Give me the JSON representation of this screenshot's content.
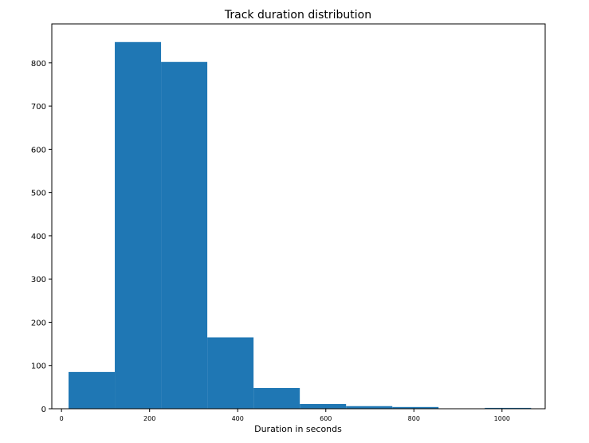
{
  "chart_data": {
    "type": "bar",
    "title": "Track duration distribution",
    "xlabel": "Duration in seconds",
    "ylabel": "",
    "bar_color": "#1f77b4",
    "xlim": [
      -22,
      1098
    ],
    "ylim": [
      0,
      890
    ],
    "xticks": [
      0,
      200,
      400,
      600,
      800,
      1000
    ],
    "yticks": [
      0,
      100,
      200,
      300,
      400,
      500,
      600,
      700,
      800
    ],
    "bins": [
      {
        "x0": 16,
        "x1": 121,
        "value": 85
      },
      {
        "x0": 121,
        "x1": 226,
        "value": 848
      },
      {
        "x0": 226,
        "x1": 331,
        "value": 802
      },
      {
        "x0": 331,
        "x1": 436,
        "value": 165
      },
      {
        "x0": 436,
        "x1": 541,
        "value": 48
      },
      {
        "x0": 541,
        "x1": 646,
        "value": 11
      },
      {
        "x0": 646,
        "x1": 751,
        "value": 6
      },
      {
        "x0": 751,
        "x1": 856,
        "value": 4
      },
      {
        "x0": 856,
        "x1": 961,
        "value": 0
      },
      {
        "x0": 961,
        "x1": 1066,
        "value": 2
      }
    ],
    "grid": false,
    "legend": "none"
  }
}
